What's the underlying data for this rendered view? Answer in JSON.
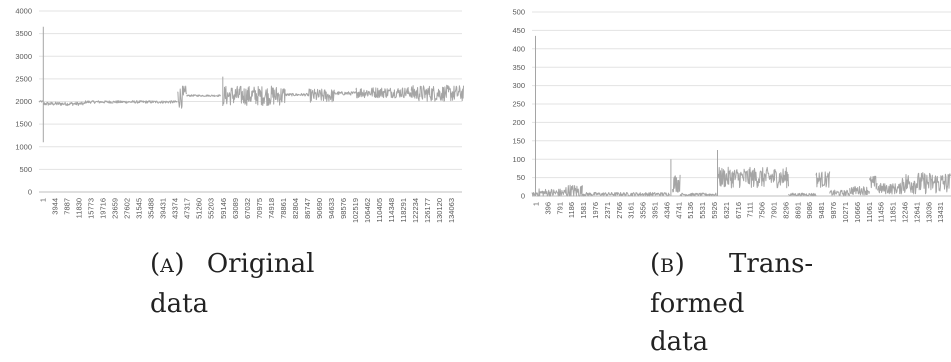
{
  "charts": [
    {
      "id": "a",
      "caption": {
        "tag_open": "(",
        "tag_letter": "A",
        "tag_close": ")",
        "lines": [
          "Original",
          "data"
        ]
      },
      "chart_data": {
        "type": "line",
        "title": "",
        "xlabel": "",
        "ylabel": "",
        "ylim": [
          0,
          4000
        ],
        "yticks": [
          0,
          500,
          1000,
          1500,
          2000,
          2500,
          3000,
          3500,
          4000
        ],
        "xtick_labels": [
          "1",
          "3944",
          "7887",
          "11830",
          "15773",
          "19716",
          "23659",
          "27602",
          "31545",
          "35488",
          "39431",
          "43374",
          "47317",
          "51260",
          "55203",
          "59146",
          "63089",
          "67032",
          "70975",
          "74918",
          "78861",
          "82804",
          "86747",
          "90690",
          "94633",
          "98576",
          "102519",
          "106462",
          "110405",
          "114348",
          "118291",
          "122234",
          "126177",
          "130120",
          "134063"
        ],
        "grid": true,
        "line_color": "#a5a5a5",
        "series": [
          {
            "segments": [
              {
                "x": [
                  1,
                  1300
                ],
                "center": 2000,
                "amp": 20
              },
              {
                "x": [
                  1300,
                  1500
                ],
                "spike_from": 1100,
                "spike_to": 3650
              },
              {
                "x": [
                  1500,
                  15000
                ],
                "center": 1950,
                "amp": 40
              },
              {
                "x": [
                  15000,
                  45000
                ],
                "center": 1990,
                "amp": 30
              },
              {
                "x": [
                  45000,
                  48000
                ],
                "center": 2100,
                "amp": 250
              },
              {
                "x": [
                  48000,
                  59000
                ],
                "center": 2130,
                "amp": 20
              },
              {
                "x": [
                  59500,
                  60000
                ],
                "spike_from": 1900,
                "spike_to": 2550
              },
              {
                "x": [
                  60000,
                  80000
                ],
                "center": 2130,
                "amp": 220
              },
              {
                "x": [
                  80000,
                  87500
                ],
                "center": 2150,
                "amp": 30
              },
              {
                "x": [
                  87500,
                  96000
                ],
                "center": 2130,
                "amp": 150
              },
              {
                "x": [
                  96000,
                  103000
                ],
                "center": 2180,
                "amp": 40
              },
              {
                "x": [
                  103000,
                  121000
                ],
                "center": 2200,
                "amp": 120
              },
              {
                "x": [
                  121000,
                  138000
                ],
                "center": 2180,
                "amp": 180
              }
            ]
          }
        ]
      }
    },
    {
      "id": "b",
      "caption": {
        "tag_open": "(",
        "tag_letter": "B",
        "tag_close": ")",
        "word": "Trans-",
        "lines": [
          "formed",
          "data"
        ]
      },
      "chart_data": {
        "type": "line",
        "title": "",
        "xlabel": "",
        "ylabel": "",
        "ylim": [
          0,
          500
        ],
        "yticks": [
          0,
          50,
          100,
          150,
          200,
          250,
          300,
          350,
          400,
          450,
          500
        ],
        "xtick_labels": [
          "1",
          "396",
          "791",
          "1186",
          "1581",
          "1976",
          "2371",
          "2766",
          "3161",
          "3556",
          "3951",
          "4346",
          "4741",
          "5136",
          "5531",
          "5926",
          "6321",
          "6716",
          "7111",
          "7506",
          "7901",
          "8296",
          "8691",
          "9086",
          "9481",
          "9876",
          "10271",
          "10666",
          "11061",
          "11456",
          "11851",
          "12246",
          "12641",
          "13036",
          "13431"
        ],
        "grid": true,
        "line_color": "#a5a5a5",
        "series": [
          {
            "segments": [
              {
                "x": [
                  1,
                  100
                ],
                "center": 5,
                "amp": 5
              },
              {
                "x": [
                  100,
                  130
                ],
                "spike_from": 0,
                "spike_to": 435
              },
              {
                "x": [
                  130,
                  1100
                ],
                "center": 8,
                "amp": 12
              },
              {
                "x": [
                  1100,
                  1650
                ],
                "center": 12,
                "amp": 20
              },
              {
                "x": [
                  1650,
                  4500
                ],
                "center": 5,
                "amp": 5
              },
              {
                "x": [
                  4500,
                  4600
                ],
                "spike_from": 0,
                "spike_to": 100
              },
              {
                "x": [
                  4600,
                  4850
                ],
                "center": 35,
                "amp": 25
              },
              {
                "x": [
                  4850,
                  6050
                ],
                "center": 4,
                "amp": 4
              },
              {
                "x": [
                  6050,
                  6100
                ],
                "spike_from": 0,
                "spike_to": 125
              },
              {
                "x": [
                  6100,
                  8400
                ],
                "center": 50,
                "amp": 28
              },
              {
                "x": [
                  8400,
                  9300
                ],
                "center": 4,
                "amp": 4
              },
              {
                "x": [
                  9300,
                  9750
                ],
                "center": 45,
                "amp": 22
              },
              {
                "x": [
                  9750,
                  10400
                ],
                "center": 8,
                "amp": 8
              },
              {
                "x": [
                  10400,
                  11050
                ],
                "center": 15,
                "amp": 12
              },
              {
                "x": [
                  11050,
                  11300
                ],
                "center": 35,
                "amp": 20
              },
              {
                "x": [
                  11300,
                  12100
                ],
                "center": 20,
                "amp": 15
              },
              {
                "x": [
                  12100,
                  13700
                ],
                "center": 35,
                "amp": 30
              }
            ]
          }
        ]
      }
    }
  ]
}
